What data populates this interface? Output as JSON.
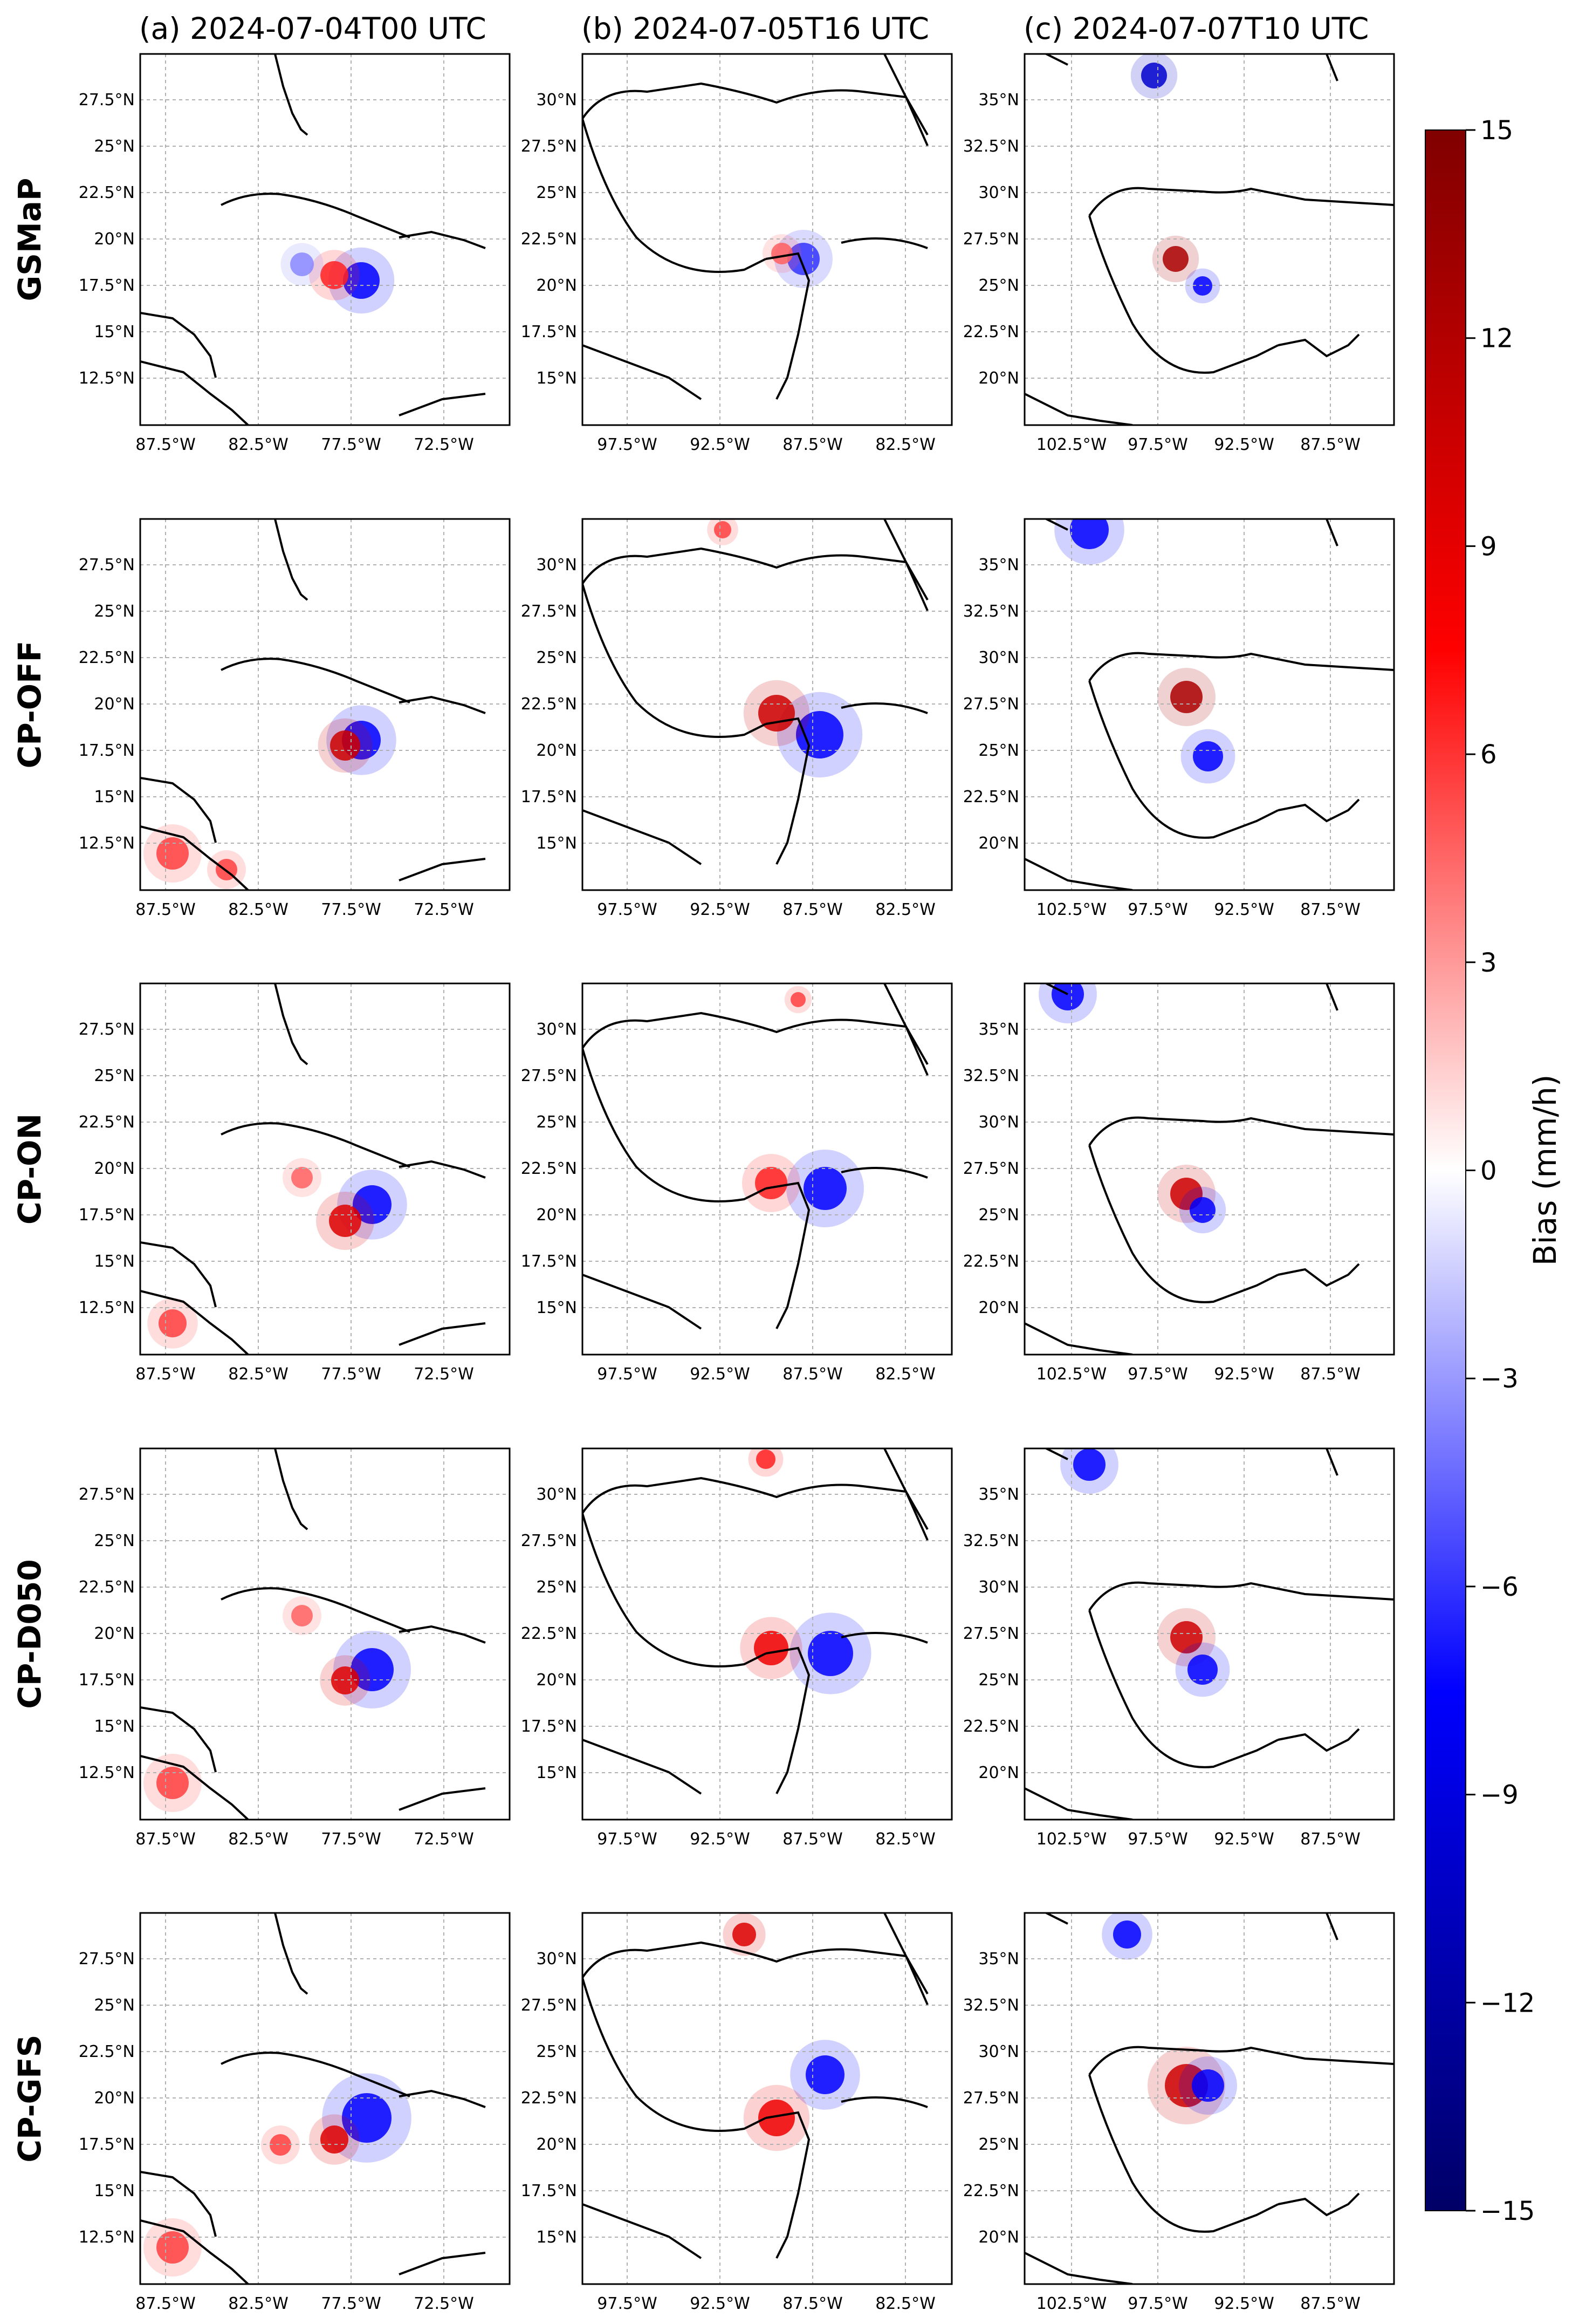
{
  "columns": [
    {
      "title": "(a) 2024-07-04T00 UTC",
      "xticks": [
        "87.5°W",
        "82.5°W",
        "77.5°W",
        "72.5°W"
      ],
      "yticks": [
        "27.5°N",
        "25°N",
        "22.5°N",
        "20°N",
        "17.5°N",
        "15°N",
        "12.5°N"
      ]
    },
    {
      "title": "(b) 2024-07-05T16 UTC",
      "xticks": [
        "97.5°W",
        "92.5°W",
        "87.5°W",
        "82.5°W"
      ],
      "yticks": [
        "30°N",
        "27.5°N",
        "25°N",
        "22.5°N",
        "20°N",
        "17.5°N",
        "15°N"
      ]
    },
    {
      "title": "(c) 2024-07-07T10 UTC",
      "xticks": [
        "102.5°W",
        "97.5°W",
        "92.5°W",
        "87.5°W"
      ],
      "yticks": [
        "35°N",
        "32.5°N",
        "30°N",
        "27.5°N",
        "25°N",
        "22.5°N",
        "20°N"
      ]
    }
  ],
  "rows": [
    "GSMaP",
    "CP-OFF",
    "CP-ON",
    "CP-D050",
    "CP-GFS"
  ],
  "colorbar": {
    "label": "Bias (mm/h)",
    "ticks": [
      "15",
      "12",
      "9",
      "6",
      "3",
      "0",
      "−3",
      "−6",
      "−9",
      "−12",
      "−15"
    ],
    "range": [
      -15,
      15
    ],
    "colors": {
      "max": "#800000",
      "high": "#ff0000",
      "zero": "#ffffff",
      "low": "#0000ff",
      "min": "#000066"
    }
  },
  "colors": {
    "coast": "#000000",
    "grid": "#b0b0b0"
  }
}
